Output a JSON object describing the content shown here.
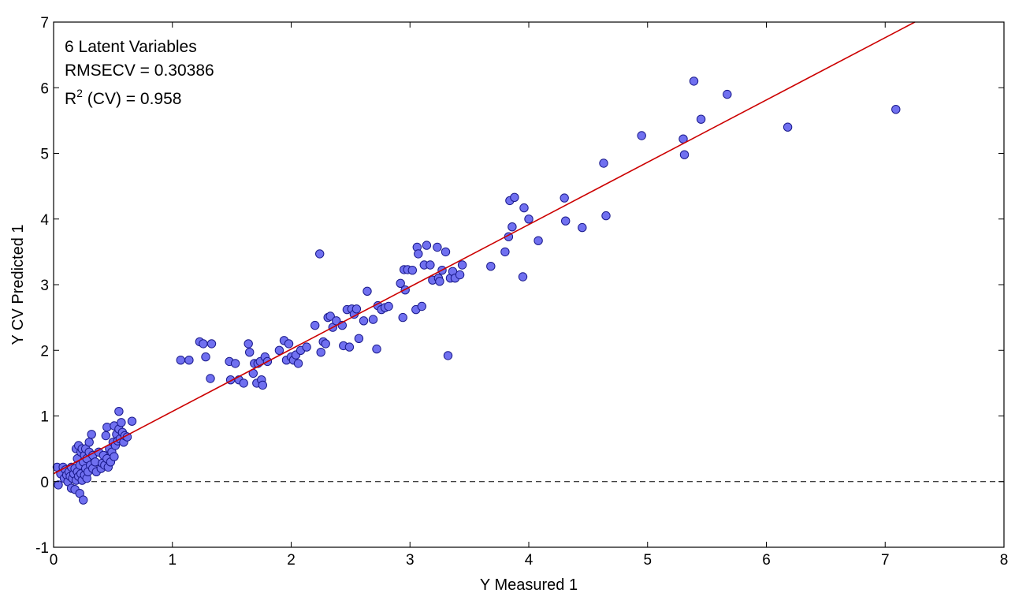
{
  "chart_data": {
    "type": "scatter",
    "title": "",
    "xlabel": "Y Measured 1",
    "ylabel": "Y CV Predicted 1",
    "xlim": [
      0,
      8
    ],
    "ylim": [
      -1,
      7
    ],
    "xticks": [
      "0",
      "1",
      "2",
      "3",
      "4",
      "5",
      "6",
      "7",
      "8"
    ],
    "yticks": [
      "-1",
      "0",
      "1",
      "2",
      "3",
      "4",
      "5",
      "6",
      "7"
    ],
    "grid": false,
    "colors": {
      "marker_fill": "#7070f0",
      "marker_edge": "#1a1a8c",
      "fit_line": "#cc0000",
      "zero_line": "#000000"
    },
    "annotations": {
      "line1": "6 Latent Variables",
      "line2": "RMSECV = 0.30386",
      "line3_prefix": "R",
      "line3_sup": "2",
      "line3_suffix": " (CV) = 0.958"
    },
    "fit_line": {
      "x": [
        0.0,
        7.25
      ],
      "y": [
        0.12,
        7.0
      ]
    },
    "zero_line": {
      "y": 0,
      "style": "dashed"
    },
    "series": [
      {
        "points": [
          [
            0.03,
            0.22
          ],
          [
            0.04,
            -0.05
          ],
          [
            0.06,
            0.12
          ],
          [
            0.08,
            0.22
          ],
          [
            0.09,
            0.05
          ],
          [
            0.1,
            0.18
          ],
          [
            0.11,
            0.1
          ],
          [
            0.12,
            0.0
          ],
          [
            0.13,
            0.15
          ],
          [
            0.14,
            0.08
          ],
          [
            0.15,
            0.22
          ],
          [
            0.15,
            -0.1
          ],
          [
            0.16,
            0.05
          ],
          [
            0.17,
            0.12
          ],
          [
            0.18,
            0.2
          ],
          [
            0.18,
            -0.12
          ],
          [
            0.19,
            0.02
          ],
          [
            0.19,
            0.5
          ],
          [
            0.2,
            0.15
          ],
          [
            0.2,
            0.35
          ],
          [
            0.21,
            0.08
          ],
          [
            0.21,
            0.55
          ],
          [
            0.22,
            0.25
          ],
          [
            0.22,
            -0.18
          ],
          [
            0.23,
            0.45
          ],
          [
            0.23,
            0.12
          ],
          [
            0.24,
            0.5
          ],
          [
            0.24,
            0.02
          ],
          [
            0.25,
            -0.28
          ],
          [
            0.25,
            0.3
          ],
          [
            0.26,
            0.4
          ],
          [
            0.26,
            0.1
          ],
          [
            0.27,
            0.5
          ],
          [
            0.27,
            0.2
          ],
          [
            0.28,
            0.35
          ],
          [
            0.28,
            0.05
          ],
          [
            0.29,
            0.15
          ],
          [
            0.3,
            0.45
          ],
          [
            0.3,
            0.6
          ],
          [
            0.31,
            0.25
          ],
          [
            0.32,
            0.72
          ],
          [
            0.33,
            0.4
          ],
          [
            0.33,
            0.2
          ],
          [
            0.35,
            0.3
          ],
          [
            0.36,
            0.15
          ],
          [
            0.38,
            0.45
          ],
          [
            0.4,
            0.2
          ],
          [
            0.41,
            0.28
          ],
          [
            0.42,
            0.4
          ],
          [
            0.43,
            0.25
          ],
          [
            0.44,
            0.7
          ],
          [
            0.45,
            0.35
          ],
          [
            0.45,
            0.83
          ],
          [
            0.46,
            0.22
          ],
          [
            0.47,
            0.5
          ],
          [
            0.48,
            0.3
          ],
          [
            0.49,
            0.45
          ],
          [
            0.5,
            0.6
          ],
          [
            0.51,
            0.38
          ],
          [
            0.51,
            0.85
          ],
          [
            0.52,
            0.55
          ],
          [
            0.53,
            0.72
          ],
          [
            0.54,
            0.62
          ],
          [
            0.55,
            1.07
          ],
          [
            0.55,
            0.8
          ],
          [
            0.56,
            0.65
          ],
          [
            0.57,
            0.9
          ],
          [
            0.58,
            0.75
          ],
          [
            0.59,
            0.6
          ],
          [
            0.6,
            0.7
          ],
          [
            0.62,
            0.68
          ],
          [
            0.66,
            0.92
          ],
          [
            1.07,
            1.85
          ],
          [
            1.14,
            1.85
          ],
          [
            1.23,
            2.13
          ],
          [
            1.26,
            2.1
          ],
          [
            1.28,
            1.9
          ],
          [
            1.32,
            1.57
          ],
          [
            1.33,
            2.1
          ],
          [
            1.48,
            1.83
          ],
          [
            1.49,
            1.55
          ],
          [
            1.53,
            1.8
          ],
          [
            1.56,
            1.55
          ],
          [
            1.6,
            1.5
          ],
          [
            1.64,
            2.1
          ],
          [
            1.65,
            1.97
          ],
          [
            1.68,
            1.65
          ],
          [
            1.69,
            1.8
          ],
          [
            1.71,
            1.5
          ],
          [
            1.72,
            1.8
          ],
          [
            1.74,
            1.83
          ],
          [
            1.75,
            1.55
          ],
          [
            1.76,
            1.47
          ],
          [
            1.78,
            1.9
          ],
          [
            1.8,
            1.83
          ],
          [
            1.9,
            2.0
          ],
          [
            1.94,
            2.15
          ],
          [
            1.96,
            1.85
          ],
          [
            1.98,
            2.1
          ],
          [
            2.0,
            1.9
          ],
          [
            2.02,
            1.85
          ],
          [
            2.04,
            1.93
          ],
          [
            2.06,
            1.8
          ],
          [
            2.08,
            2.0
          ],
          [
            2.13,
            2.05
          ],
          [
            2.2,
            2.38
          ],
          [
            2.24,
            3.47
          ],
          [
            2.25,
            1.97
          ],
          [
            2.27,
            2.13
          ],
          [
            2.29,
            2.1
          ],
          [
            2.31,
            2.5
          ],
          [
            2.33,
            2.52
          ],
          [
            2.35,
            2.35
          ],
          [
            2.38,
            2.45
          ],
          [
            2.43,
            2.38
          ],
          [
            2.44,
            2.07
          ],
          [
            2.47,
            2.62
          ],
          [
            2.49,
            2.05
          ],
          [
            2.51,
            2.63
          ],
          [
            2.53,
            2.55
          ],
          [
            2.55,
            2.63
          ],
          [
            2.57,
            2.18
          ],
          [
            2.61,
            2.45
          ],
          [
            2.64,
            2.9
          ],
          [
            2.69,
            2.47
          ],
          [
            2.72,
            2.02
          ],
          [
            2.73,
            2.68
          ],
          [
            2.76,
            2.62
          ],
          [
            2.79,
            2.65
          ],
          [
            2.82,
            2.67
          ],
          [
            2.92,
            3.02
          ],
          [
            2.94,
            2.5
          ],
          [
            2.95,
            3.23
          ],
          [
            2.96,
            2.92
          ],
          [
            2.98,
            3.23
          ],
          [
            3.02,
            3.22
          ],
          [
            3.05,
            2.62
          ],
          [
            3.06,
            3.57
          ],
          [
            3.07,
            3.47
          ],
          [
            3.1,
            2.67
          ],
          [
            3.12,
            3.3
          ],
          [
            3.14,
            3.6
          ],
          [
            3.17,
            3.3
          ],
          [
            3.19,
            3.07
          ],
          [
            3.23,
            3.57
          ],
          [
            3.24,
            3.1
          ],
          [
            3.25,
            3.05
          ],
          [
            3.27,
            3.22
          ],
          [
            3.3,
            3.5
          ],
          [
            3.32,
            1.92
          ],
          [
            3.34,
            3.1
          ],
          [
            3.36,
            3.2
          ],
          [
            3.38,
            3.1
          ],
          [
            3.42,
            3.15
          ],
          [
            3.44,
            3.3
          ],
          [
            3.68,
            3.28
          ],
          [
            3.8,
            3.5
          ],
          [
            3.83,
            3.73
          ],
          [
            3.84,
            4.28
          ],
          [
            3.86,
            3.88
          ],
          [
            3.88,
            4.33
          ],
          [
            3.95,
            3.12
          ],
          [
            3.96,
            4.17
          ],
          [
            4.0,
            4.0
          ],
          [
            4.08,
            3.67
          ],
          [
            4.3,
            4.32
          ],
          [
            4.31,
            3.97
          ],
          [
            4.45,
            3.87
          ],
          [
            4.63,
            4.85
          ],
          [
            4.65,
            4.05
          ],
          [
            4.95,
            5.27
          ],
          [
            5.3,
            5.22
          ],
          [
            5.31,
            4.98
          ],
          [
            5.39,
            6.1
          ],
          [
            5.45,
            5.52
          ],
          [
            5.67,
            5.9
          ],
          [
            6.18,
            5.4
          ],
          [
            7.09,
            5.67
          ]
        ]
      }
    ]
  }
}
